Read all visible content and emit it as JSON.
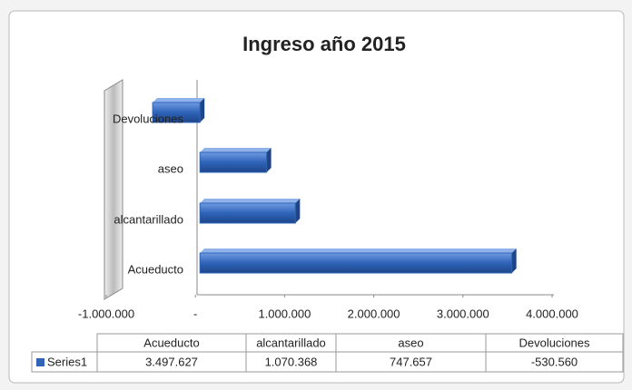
{
  "chart_data": {
    "type": "bar",
    "orientation": "horizontal",
    "title": "Ingreso año 2015",
    "categories": [
      "Acueducto",
      "alcantarillado",
      "aseo",
      "Devoluciones"
    ],
    "series": [
      {
        "name": "Series1",
        "color": "#2f64b9",
        "values": [
          3497627,
          1070368,
          747657,
          -530560
        ],
        "value_labels": [
          "3.497.627",
          "1.070.368",
          "747.657",
          "-530.560"
        ]
      }
    ],
    "xlim": [
      -1000000,
      4000000
    ],
    "xticks": [
      {
        "value": -1000000,
        "label": "-1.000.000"
      },
      {
        "value": 0,
        "label": "-"
      },
      {
        "value": 1000000,
        "label": "1.000.000"
      },
      {
        "value": 2000000,
        "label": "2.000.000"
      },
      {
        "value": 3000000,
        "label": "3.000.000"
      },
      {
        "value": 4000000,
        "label": "4.000.000"
      }
    ],
    "data_table": true
  }
}
